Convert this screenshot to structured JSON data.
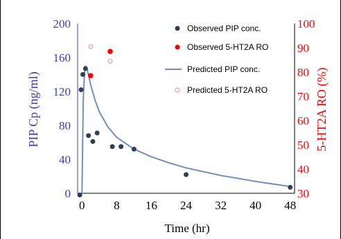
{
  "chart_data": {
    "type": "scatter",
    "title": "",
    "xlabel": "Time (hr)",
    "ylabel": "PIP Cp (ng/ml)",
    "y2label": "5-HT2A RO (%)",
    "xlim": [
      -1,
      49
    ],
    "ylim": [
      0,
      200
    ],
    "y2lim": [
      30,
      100
    ],
    "x_ticks": [
      0,
      8,
      16,
      24,
      32,
      40,
      48
    ],
    "y_ticks": [
      0,
      40,
      80,
      120,
      160,
      200
    ],
    "y2_ticks": [
      30,
      40,
      50,
      60,
      70,
      80,
      90,
      100
    ],
    "grid": false,
    "legend_position": "top-right",
    "colors": {
      "observed_pip": "#2f3f56",
      "observed_ro": "#ff0000",
      "predicted_pip": "#6f8fbf",
      "predicted_ro": "#f08a8a",
      "left_axis": "#3b3fb0",
      "right_axis": "#ff0000"
    },
    "series": [
      {
        "name": "Observed PIP conc.",
        "axis": "left",
        "marker": "filled-circle",
        "points": [
          [
            -0.5,
            -2
          ],
          [
            -0.2,
            122
          ],
          [
            0.2,
            140
          ],
          [
            0.8,
            147
          ],
          [
            1.5,
            68
          ],
          [
            2.5,
            61
          ],
          [
            3.5,
            71
          ],
          [
            7,
            55
          ],
          [
            9,
            55
          ],
          [
            12,
            52
          ],
          [
            24,
            22
          ],
          [
            48,
            7
          ]
        ]
      },
      {
        "name": "Observed 5-HT2A RO",
        "axis": "right",
        "marker": "filled-circle",
        "points": [
          [
            2,
            78.5
          ],
          [
            6.5,
            88.5
          ]
        ]
      },
      {
        "name": "Predicted PIP conc.",
        "axis": "left",
        "marker": "line",
        "points": [
          [
            0,
            0
          ],
          [
            0.3,
            110
          ],
          [
            0.6,
            143
          ],
          [
            0.9,
            149
          ],
          [
            1.2,
            146
          ],
          [
            2,
            128
          ],
          [
            3,
            110
          ],
          [
            4,
            96
          ],
          [
            6,
            78
          ],
          [
            8,
            66
          ],
          [
            12,
            52
          ],
          [
            16,
            43
          ],
          [
            20,
            36
          ],
          [
            24,
            30
          ],
          [
            32,
            21
          ],
          [
            40,
            14
          ],
          [
            48,
            8
          ]
        ]
      },
      {
        "name": "Predicted 5-HT2A RO",
        "axis": "right",
        "marker": "open-circle",
        "points": [
          [
            2,
            90.5
          ],
          [
            6.5,
            84.5
          ]
        ]
      }
    ]
  }
}
